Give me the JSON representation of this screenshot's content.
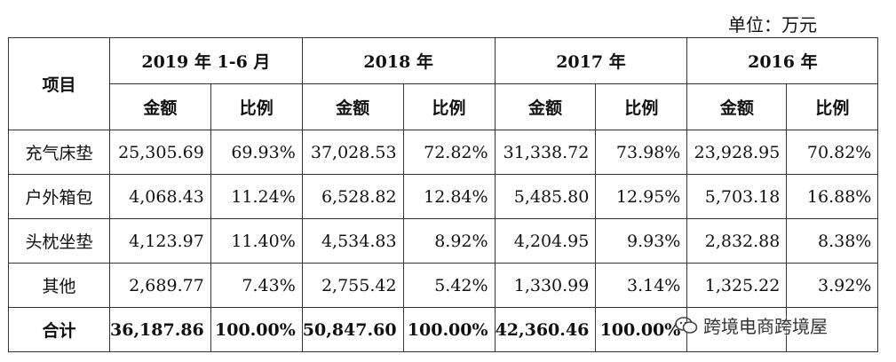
{
  "unit_label": "单位：万元",
  "table": {
    "item_header": "项目",
    "periods": [
      "2019 年 1-6 月",
      "2018 年",
      "2017 年",
      "2016 年"
    ],
    "amount_label": "金额",
    "ratio_label": "比例",
    "rows": [
      {
        "name": "充气床垫",
        "cells": [
          "25,305.69",
          "69.93%",
          "37,028.53",
          "72.82%",
          "31,338.72",
          "73.98%",
          "23,928.95",
          "70.82%"
        ]
      },
      {
        "name": "户外箱包",
        "cells": [
          "4,068.43",
          "11.24%",
          "6,528.82",
          "12.84%",
          "5,485.80",
          "12.95%",
          "5,703.18",
          "16.88%"
        ]
      },
      {
        "name": "头枕坐垫",
        "cells": [
          "4,123.97",
          "11.40%",
          "4,534.83",
          "8.92%",
          "4,204.95",
          "9.93%",
          "2,832.88",
          "8.38%"
        ]
      },
      {
        "name": "其他",
        "cells": [
          "2,689.77",
          "7.43%",
          "2,755.42",
          "5.42%",
          "1,330.99",
          "3.14%",
          "1,325.22",
          "3.92%"
        ]
      }
    ],
    "total": {
      "name": "合计",
      "cells": [
        "36,187.86",
        "100.00%",
        "50,847.60",
        "100.00%",
        "42,360.46",
        "100.00%",
        "",
        ""
      ]
    }
  },
  "watermark": {
    "text": "跨境电商跨境屋",
    "icon": "wechat-icon"
  }
}
